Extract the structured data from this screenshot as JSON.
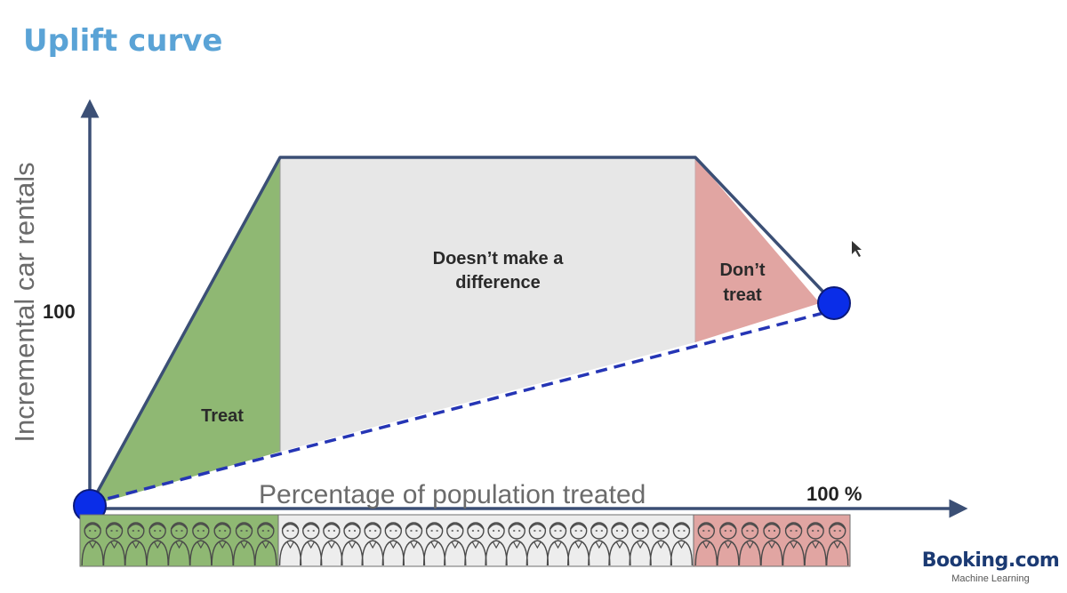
{
  "title": "Uplift curve",
  "axes": {
    "y_label": "Incremental car rentals",
    "x_label": "Percentage of population treated",
    "y_tick": "100",
    "x_tick": "100 %"
  },
  "regions": {
    "treat": "Treat",
    "no_difference_line1": "Doesn’t make a",
    "no_difference_line2": "difference",
    "dont_treat_line1": "Don’t",
    "dont_treat_line2": "treat"
  },
  "colors": {
    "treat": "#8fb873",
    "no_difference": "#e7e7e7",
    "dont_treat": "#e1a5a2",
    "curve": "#3b4f75",
    "random_line": "#2535b5",
    "endpoint": "#0a2de8",
    "title": "#5aa3d6"
  },
  "population_strip": {
    "treat_count": 9,
    "no_difference_count": 20,
    "dont_treat_count": 7
  },
  "brand": {
    "name": "Booking.com",
    "subtitle": "Machine Learning"
  }
}
